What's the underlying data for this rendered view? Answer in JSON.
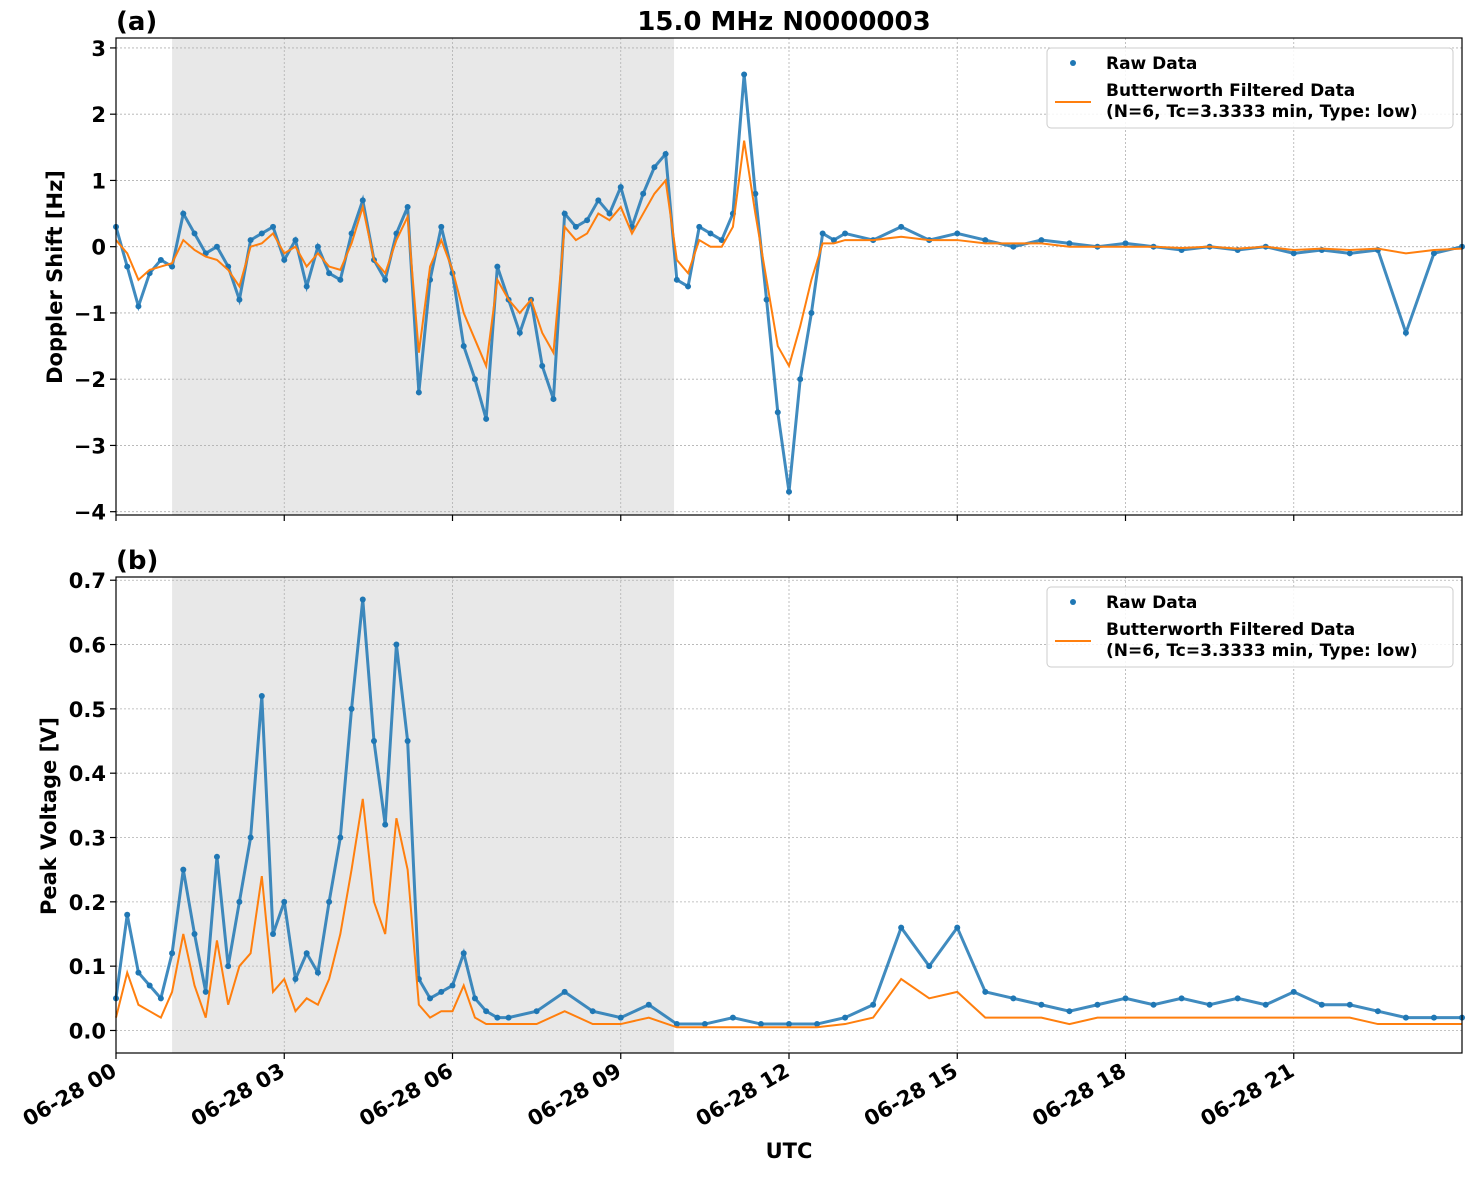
{
  "chart_data": [
    {
      "type": "scatter+line",
      "panel_label": "(a)",
      "title": "15.0 MHz N0000003",
      "xlabel": "",
      "ylabel": "Doppler Shift [Hz]",
      "ylim": [
        -4.05,
        3.15
      ],
      "yticks": [
        3,
        2,
        1,
        0,
        -1,
        -2,
        -3,
        -4
      ],
      "ytick_labels": [
        "3",
        "2",
        "1",
        "0",
        "−1",
        "−2",
        "−3",
        "−4"
      ],
      "xlim_hours": [
        0,
        24
      ],
      "grid": true,
      "legend_position": "top-right",
      "shaded_interval_hours": [
        1.0,
        9.95
      ],
      "series": [
        {
          "name": "Raw Data",
          "style": "points",
          "color": "#1f77b4",
          "x_hours": [
            0.0,
            0.2,
            0.4,
            0.6,
            0.8,
            1.0,
            1.2,
            1.4,
            1.6,
            1.8,
            2.0,
            2.2,
            2.4,
            2.6,
            2.8,
            3.0,
            3.2,
            3.4,
            3.6,
            3.8,
            4.0,
            4.2,
            4.4,
            4.6,
            4.8,
            5.0,
            5.2,
            5.4,
            5.6,
            5.8,
            6.0,
            6.2,
            6.4,
            6.6,
            6.8,
            7.0,
            7.2,
            7.4,
            7.6,
            7.8,
            8.0,
            8.2,
            8.4,
            8.6,
            8.8,
            9.0,
            9.2,
            9.4,
            9.6,
            9.8,
            10.0,
            10.2,
            10.4,
            10.6,
            10.8,
            11.0,
            11.2,
            11.4,
            11.6,
            11.8,
            12.0,
            12.2,
            12.4,
            12.6,
            12.8,
            13.0,
            13.5,
            14.0,
            14.5,
            15.0,
            15.5,
            16.0,
            16.5,
            17.0,
            17.5,
            18.0,
            18.5,
            19.0,
            19.5,
            20.0,
            20.5,
            21.0,
            21.5,
            22.0,
            22.5,
            23.0,
            23.5,
            24.0
          ],
          "y": [
            0.3,
            -0.3,
            -0.9,
            -0.4,
            -0.2,
            -0.3,
            0.5,
            0.2,
            -0.1,
            0.0,
            -0.3,
            -0.8,
            0.1,
            0.2,
            0.3,
            -0.2,
            0.1,
            -0.6,
            0.0,
            -0.4,
            -0.5,
            0.2,
            0.7,
            -0.2,
            -0.5,
            0.2,
            0.6,
            -2.2,
            -0.5,
            0.3,
            -0.4,
            -1.5,
            -2.0,
            -2.6,
            -0.3,
            -0.8,
            -1.3,
            -0.8,
            -1.8,
            -2.3,
            0.5,
            0.3,
            0.4,
            0.7,
            0.5,
            0.9,
            0.3,
            0.8,
            1.2,
            1.4,
            -0.5,
            -0.6,
            0.3,
            0.2,
            0.1,
            0.5,
            2.6,
            0.8,
            -0.8,
            -2.5,
            -3.7,
            -2.0,
            -1.0,
            0.2,
            0.1,
            0.2,
            0.1,
            0.3,
            0.1,
            0.2,
            0.1,
            0.0,
            0.1,
            0.05,
            0.0,
            0.05,
            0.0,
            -0.05,
            0.0,
            -0.05,
            0.0,
            -0.1,
            -0.05,
            -0.1,
            -0.05,
            -1.3,
            -0.1,
            0.0
          ]
        },
        {
          "name": "Butterworth Filtered Data\n(N=6, Tc=3.3333 min, Type: low)",
          "legend_lines": [
            "Butterworth Filtered Data",
            "(N=6, Tc=3.3333 min, Type: low)"
          ],
          "style": "line",
          "color": "#ff7f0e",
          "x_hours": [
            0.0,
            0.2,
            0.4,
            0.6,
            0.8,
            1.0,
            1.2,
            1.4,
            1.6,
            1.8,
            2.0,
            2.2,
            2.4,
            2.6,
            2.8,
            3.0,
            3.2,
            3.4,
            3.6,
            3.8,
            4.0,
            4.2,
            4.4,
            4.6,
            4.8,
            5.0,
            5.2,
            5.4,
            5.6,
            5.8,
            6.0,
            6.2,
            6.4,
            6.6,
            6.8,
            7.0,
            7.2,
            7.4,
            7.6,
            7.8,
            8.0,
            8.2,
            8.4,
            8.6,
            8.8,
            9.0,
            9.2,
            9.4,
            9.6,
            9.8,
            10.0,
            10.2,
            10.4,
            10.6,
            10.8,
            11.0,
            11.2,
            11.4,
            11.6,
            11.8,
            12.0,
            12.2,
            12.4,
            12.6,
            12.8,
            13.0,
            13.5,
            14.0,
            14.5,
            15.0,
            15.5,
            16.0,
            16.5,
            17.0,
            17.5,
            18.0,
            18.5,
            19.0,
            19.5,
            20.0,
            20.5,
            21.0,
            21.5,
            22.0,
            22.5,
            23.0,
            23.5,
            24.0
          ],
          "y": [
            0.1,
            -0.1,
            -0.5,
            -0.35,
            -0.3,
            -0.25,
            0.1,
            -0.05,
            -0.15,
            -0.2,
            -0.35,
            -0.6,
            0.0,
            0.05,
            0.2,
            -0.1,
            0.0,
            -0.3,
            -0.1,
            -0.3,
            -0.35,
            0.05,
            0.6,
            -0.2,
            -0.4,
            0.1,
            0.45,
            -1.6,
            -0.3,
            0.1,
            -0.35,
            -1.0,
            -1.4,
            -1.8,
            -0.5,
            -0.8,
            -1.0,
            -0.8,
            -1.3,
            -1.6,
            0.3,
            0.1,
            0.2,
            0.5,
            0.4,
            0.6,
            0.2,
            0.5,
            0.8,
            1.0,
            -0.2,
            -0.4,
            0.1,
            0.0,
            0.0,
            0.3,
            1.6,
            0.5,
            -0.5,
            -1.5,
            -1.8,
            -1.2,
            -0.5,
            0.05,
            0.05,
            0.1,
            0.1,
            0.15,
            0.1,
            0.1,
            0.05,
            0.05,
            0.05,
            0.0,
            0.0,
            0.0,
            0.0,
            -0.02,
            0.0,
            -0.03,
            0.0,
            -0.05,
            -0.03,
            -0.05,
            -0.03,
            -0.1,
            -0.05,
            -0.03
          ]
        }
      ]
    },
    {
      "type": "scatter+line",
      "panel_label": "(b)",
      "title": "",
      "xlabel": "UTC",
      "ylabel": "Peak Voltage [V]",
      "ylim": [
        -0.035,
        0.705
      ],
      "yticks": [
        0.7,
        0.6,
        0.5,
        0.4,
        0.3,
        0.2,
        0.1,
        0.0
      ],
      "ytick_labels": [
        "0.7",
        "0.6",
        "0.5",
        "0.4",
        "0.3",
        "0.2",
        "0.1",
        "0.0"
      ],
      "xlim_hours": [
        0,
        24
      ],
      "xticks_hours": [
        0,
        3,
        6,
        9,
        12,
        15,
        18,
        21
      ],
      "xtick_labels": [
        "06-28 00",
        "06-28 03",
        "06-28 06",
        "06-28 09",
        "06-28 12",
        "06-28 15",
        "06-28 18",
        "06-28 21"
      ],
      "grid": true,
      "legend_position": "top-right",
      "shaded_interval_hours": [
        1.0,
        9.95
      ],
      "series": [
        {
          "name": "Raw Data",
          "style": "points",
          "color": "#1f77b4",
          "x_hours": [
            0.0,
            0.2,
            0.4,
            0.6,
            0.8,
            1.0,
            1.2,
            1.4,
            1.6,
            1.8,
            2.0,
            2.2,
            2.4,
            2.6,
            2.8,
            3.0,
            3.2,
            3.4,
            3.6,
            3.8,
            4.0,
            4.2,
            4.4,
            4.6,
            4.8,
            5.0,
            5.2,
            5.4,
            5.6,
            5.8,
            6.0,
            6.2,
            6.4,
            6.6,
            6.8,
            7.0,
            7.5,
            8.0,
            8.5,
            9.0,
            9.5,
            10.0,
            10.5,
            11.0,
            11.5,
            12.0,
            12.5,
            13.0,
            13.5,
            14.0,
            14.5,
            15.0,
            15.5,
            16.0,
            16.5,
            17.0,
            17.5,
            18.0,
            18.5,
            19.0,
            19.5,
            20.0,
            20.5,
            21.0,
            21.5,
            22.0,
            22.5,
            23.0,
            23.5,
            24.0
          ],
          "y": [
            0.05,
            0.18,
            0.09,
            0.07,
            0.05,
            0.12,
            0.25,
            0.15,
            0.06,
            0.27,
            0.1,
            0.2,
            0.3,
            0.52,
            0.15,
            0.2,
            0.08,
            0.12,
            0.09,
            0.2,
            0.3,
            0.5,
            0.67,
            0.45,
            0.32,
            0.6,
            0.45,
            0.08,
            0.05,
            0.06,
            0.07,
            0.12,
            0.05,
            0.03,
            0.02,
            0.02,
            0.03,
            0.06,
            0.03,
            0.02,
            0.04,
            0.01,
            0.01,
            0.02,
            0.01,
            0.01,
            0.01,
            0.02,
            0.04,
            0.16,
            0.1,
            0.16,
            0.06,
            0.05,
            0.04,
            0.03,
            0.04,
            0.05,
            0.04,
            0.05,
            0.04,
            0.05,
            0.04,
            0.06,
            0.04,
            0.04,
            0.03,
            0.02,
            0.02,
            0.02
          ]
        },
        {
          "name": "Butterworth Filtered Data\n(N=6, Tc=3.3333 min, Type: low)",
          "legend_lines": [
            "Butterworth Filtered Data",
            "(N=6, Tc=3.3333 min, Type: low)"
          ],
          "style": "line",
          "color": "#ff7f0e",
          "x_hours": [
            0.0,
            0.2,
            0.4,
            0.6,
            0.8,
            1.0,
            1.2,
            1.4,
            1.6,
            1.8,
            2.0,
            2.2,
            2.4,
            2.6,
            2.8,
            3.0,
            3.2,
            3.4,
            3.6,
            3.8,
            4.0,
            4.2,
            4.4,
            4.6,
            4.8,
            5.0,
            5.2,
            5.4,
            5.6,
            5.8,
            6.0,
            6.2,
            6.4,
            6.6,
            6.8,
            7.0,
            7.5,
            8.0,
            8.5,
            9.0,
            9.5,
            10.0,
            10.5,
            11.0,
            11.5,
            12.0,
            12.5,
            13.0,
            13.5,
            14.0,
            14.5,
            15.0,
            15.5,
            16.0,
            16.5,
            17.0,
            17.5,
            18.0,
            18.5,
            19.0,
            19.5,
            20.0,
            20.5,
            21.0,
            21.5,
            22.0,
            22.5,
            23.0,
            23.5,
            24.0
          ],
          "y": [
            0.02,
            0.09,
            0.04,
            0.03,
            0.02,
            0.06,
            0.15,
            0.07,
            0.02,
            0.14,
            0.04,
            0.1,
            0.12,
            0.24,
            0.06,
            0.08,
            0.03,
            0.05,
            0.04,
            0.08,
            0.15,
            0.25,
            0.36,
            0.2,
            0.15,
            0.33,
            0.25,
            0.04,
            0.02,
            0.03,
            0.03,
            0.07,
            0.02,
            0.01,
            0.01,
            0.01,
            0.01,
            0.03,
            0.01,
            0.01,
            0.02,
            0.005,
            0.005,
            0.005,
            0.005,
            0.005,
            0.005,
            0.01,
            0.02,
            0.08,
            0.05,
            0.06,
            0.02,
            0.02,
            0.02,
            0.01,
            0.02,
            0.02,
            0.02,
            0.02,
            0.02,
            0.02,
            0.02,
            0.02,
            0.02,
            0.02,
            0.01,
            0.01,
            0.01,
            0.01
          ]
        }
      ]
    }
  ]
}
